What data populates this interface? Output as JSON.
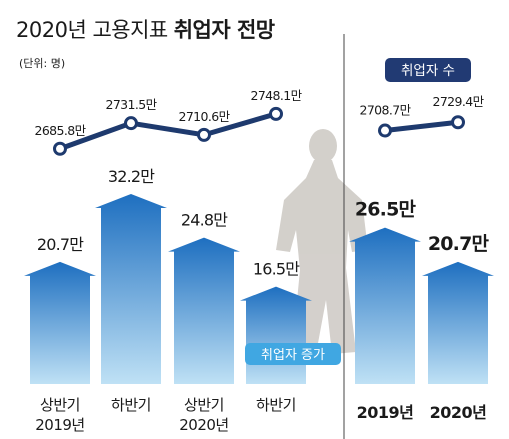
{
  "title": {
    "main": "2020년 고용지표",
    "bold": "취업자 전망"
  },
  "unit": "(단위: 명)",
  "chart_data": [
    {
      "type": "line",
      "legend_label": "취업자 수",
      "x": [
        "상반기 2019년",
        "하반기 2019년",
        "상반기 2020년",
        "하반기 2020년"
      ],
      "values": [
        2685.8,
        2731.5,
        2710.6,
        2748.1
      ],
      "value_labels": [
        "2685.8만",
        "2731.5만",
        "2710.6만",
        "2748.1만"
      ]
    },
    {
      "type": "bar",
      "legend_label": "취업자 증가",
      "categories": [
        [
          "상반기",
          "2019년"
        ],
        [
          "하반기",
          ""
        ],
        [
          "상반기",
          "2020년"
        ],
        [
          "하반기",
          ""
        ]
      ],
      "values": [
        20.7,
        32.2,
        24.8,
        16.5
      ],
      "value_labels": [
        "20.7만",
        "32.2만",
        "24.8만",
        "16.5만"
      ]
    },
    {
      "type": "line",
      "x": [
        "2019년",
        "2020년"
      ],
      "values": [
        2708.7,
        2729.4
      ],
      "value_labels": [
        "2708.7만",
        "2729.4만"
      ]
    },
    {
      "type": "bar",
      "categories": [
        "2019년",
        "2020년"
      ],
      "values": [
        26.5,
        20.7
      ],
      "value_labels": [
        "26.5만",
        "20.7만"
      ]
    }
  ],
  "colors": {
    "navy": "#1e3a6e",
    "legend_bg": "#213a73",
    "bar_top": "#1e6fc0",
    "bar_bottom": "#bfe1f5",
    "legend2_bg": "#40a7e2",
    "divider": "#444444",
    "silhouette": "#cfcbc6"
  }
}
